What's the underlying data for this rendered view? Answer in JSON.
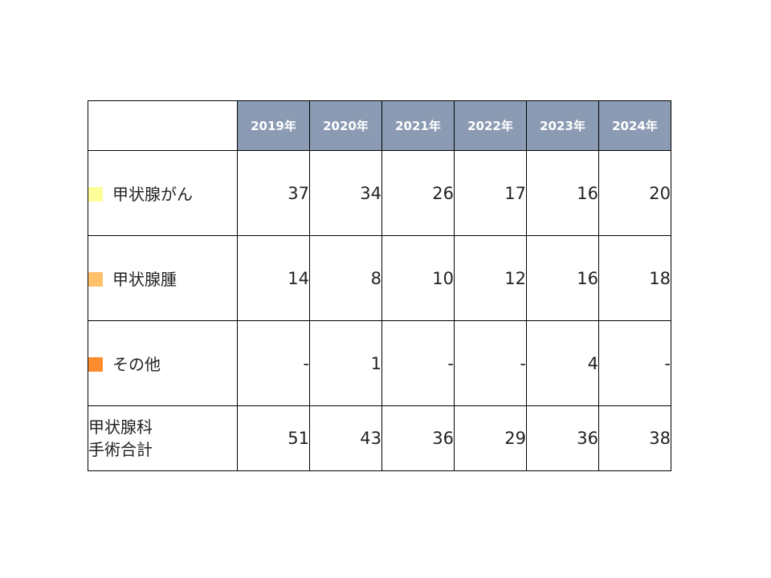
{
  "chart_data": {
    "type": "table",
    "columns": [
      "2019年",
      "2020年",
      "2021年",
      "2022年",
      "2023年",
      "2024年"
    ],
    "rows": [
      {
        "label": "甲状腺がん",
        "color": "#ffff99",
        "values": [
          "37",
          "34",
          "26",
          "17",
          "16",
          "20"
        ]
      },
      {
        "label": "甲状腺腫",
        "color": "#ffc06a",
        "values": [
          "14",
          "8",
          "10",
          "12",
          "16",
          "18"
        ]
      },
      {
        "label": "その他",
        "color": "#ff8c2e",
        "values": [
          "-",
          "1",
          "-",
          "-",
          "4",
          "-"
        ]
      }
    ],
    "total": {
      "label_line1": "甲状腺科",
      "label_line2": "手術合計",
      "values": [
        "51",
        "43",
        "36",
        "29",
        "36",
        "38"
      ]
    }
  },
  "colors": {
    "header_background": "#8a9bb3",
    "header_text": "#ffffff"
  }
}
